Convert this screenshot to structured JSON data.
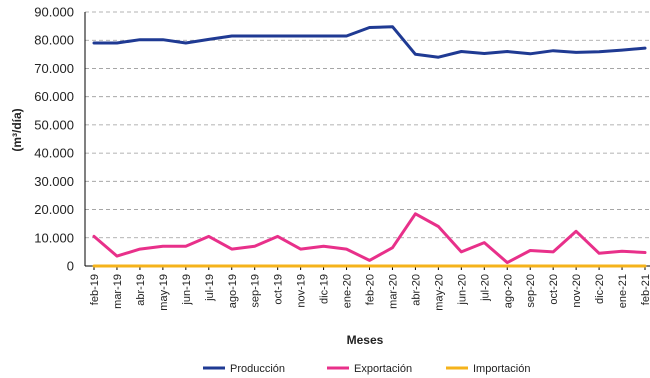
{
  "chart_data": {
    "type": "line",
    "title": "",
    "xlabel": "Meses",
    "ylabel": "(m³/día)",
    "ylim": [
      0,
      90000
    ],
    "y_ticks": [
      "0",
      "10.000",
      "20.000",
      "30.000",
      "40.000",
      "50.000",
      "60.000",
      "70.000",
      "80.000",
      "90.000"
    ],
    "grid": true,
    "legend_position": "bottom",
    "categories": [
      "feb-19",
      "mar-19",
      "abr-19",
      "may-19",
      "jun-19",
      "jul-19",
      "ago-19",
      "sep-19",
      "oct-19",
      "nov-19",
      "dic-19",
      "ene-20",
      "feb-20",
      "mar-20",
      "abr-20",
      "may-20",
      "jun-20",
      "jul-20",
      "ago-20",
      "sep-20",
      "oct-20",
      "nov-20",
      "dic-20",
      "ene-21",
      "feb-21"
    ],
    "series": [
      {
        "name": "Producción",
        "color": "#1f3a93",
        "values": [
          79000,
          79000,
          80200,
          80200,
          79000,
          80300,
          81500,
          81500,
          81500,
          81500,
          81500,
          81500,
          84500,
          84800,
          75000,
          74000,
          76000,
          75300,
          76000,
          75200,
          76300,
          75700,
          75900,
          76500,
          77200
        ]
      },
      {
        "name": "Exportación",
        "color": "#e8308a",
        "values": [
          10500,
          3500,
          6000,
          7000,
          7000,
          10500,
          6000,
          7000,
          10500,
          6000,
          7000,
          6000,
          2000,
          6500,
          18500,
          14000,
          5000,
          8300,
          1200,
          5500,
          5000,
          12300,
          4500,
          5200,
          4800
        ]
      },
      {
        "name": "Importación",
        "color": "#f5b31b",
        "values": [
          0,
          0,
          0,
          0,
          0,
          0,
          0,
          0,
          0,
          0,
          0,
          0,
          0,
          0,
          0,
          0,
          0,
          0,
          0,
          0,
          0,
          0,
          0,
          0,
          0
        ]
      }
    ]
  }
}
